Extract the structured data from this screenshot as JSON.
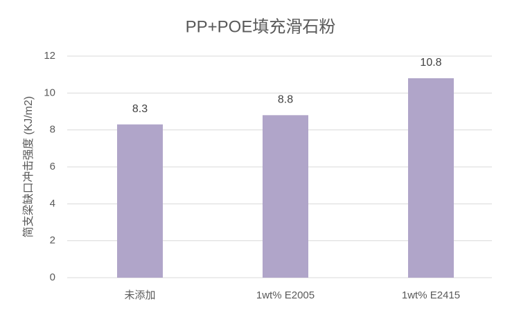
{
  "chart_data": {
    "type": "bar",
    "title": "PP+POE填充滑石粉",
    "y_label": "简支梁缺口冲击强度 (KJ/m2)",
    "categories": [
      "未添加",
      "1wt% E2005",
      "1wt% E2415"
    ],
    "values": [
      8.3,
      8.8,
      10.8
    ],
    "color": "#b0a5c9",
    "ylim": [
      0,
      12
    ],
    "yticks": [
      0,
      2,
      4,
      6,
      8,
      10,
      12
    ],
    "grid": true
  }
}
